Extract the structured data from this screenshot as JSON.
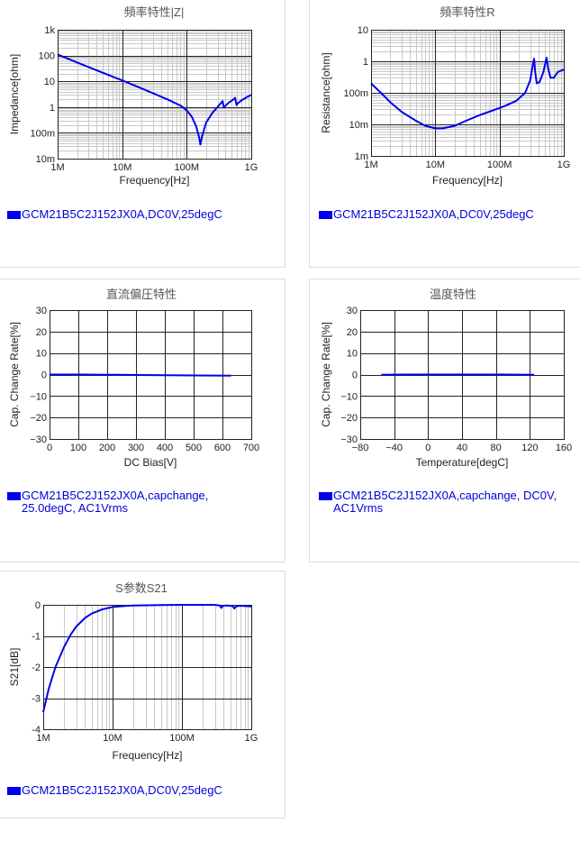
{
  "chart_data": [
    {
      "id": "z",
      "type": "line",
      "title": "頻率特性|Z|",
      "xlabel": "Frequency[Hz]",
      "ylabel": "Impedance[ohm]",
      "x_scale": "log",
      "y_scale": "log",
      "xlim": [
        1000000,
        1000000000
      ],
      "ylim": [
        0.01,
        1000
      ],
      "x_ticks": [
        {
          "v": 1000000,
          "label": "1M"
        },
        {
          "v": 10000000,
          "label": "10M"
        },
        {
          "v": 100000000,
          "label": "100M"
        },
        {
          "v": 1000000000,
          "label": "1G"
        }
      ],
      "y_ticks": [
        {
          "v": 1000,
          "label": "1k"
        },
        {
          "v": 100,
          "label": "100"
        },
        {
          "v": 10,
          "label": "10"
        },
        {
          "v": 1,
          "label": "1"
        },
        {
          "v": 0.1,
          "label": "100m"
        },
        {
          "v": 0.01,
          "label": "10m"
        }
      ],
      "grid": true,
      "legend": "bottom-left",
      "series": [
        {
          "name": "GCM21B5C2J152JX0A,DC0V,25degC",
          "color": "#0000ee",
          "points": [
            [
              1000000,
              110
            ],
            [
              2000000,
              54
            ],
            [
              5000000,
              21.5
            ],
            [
              10000000,
              10.8
            ],
            [
              20000000,
              5.3
            ],
            [
              50000000,
              2.0
            ],
            [
              80000000,
              1.15
            ],
            [
              100000000,
              0.75
            ],
            [
              120000000,
              0.42
            ],
            [
              140000000,
              0.18
            ],
            [
              155000000,
              0.07
            ],
            [
              163000000,
              0.035
            ],
            [
              172000000,
              0.07
            ],
            [
              200000000,
              0.25
            ],
            [
              250000000,
              0.6
            ],
            [
              300000000,
              1.0
            ],
            [
              340000000,
              1.45
            ],
            [
              360000000,
              1.7
            ],
            [
              375000000,
              0.95
            ],
            [
              400000000,
              1.15
            ],
            [
              450000000,
              1.5
            ],
            [
              520000000,
              1.9
            ],
            [
              560000000,
              2.3
            ],
            [
              590000000,
              1.2
            ],
            [
              620000000,
              1.4
            ],
            [
              700000000,
              1.8
            ],
            [
              850000000,
              2.4
            ],
            [
              1000000000,
              3.0
            ]
          ]
        }
      ]
    },
    {
      "id": "r",
      "type": "line",
      "title": "頻率特性R",
      "xlabel": "Frequency[Hz]",
      "ylabel": "Resistance[ohm]",
      "x_scale": "log",
      "y_scale": "log",
      "xlim": [
        1000000,
        1000000000
      ],
      "ylim": [
        0.001,
        10
      ],
      "x_ticks": [
        {
          "v": 1000000,
          "label": "1M"
        },
        {
          "v": 10000000,
          "label": "10M"
        },
        {
          "v": 100000000,
          "label": "100M"
        },
        {
          "v": 1000000000,
          "label": "1G"
        }
      ],
      "y_ticks": [
        {
          "v": 10,
          "label": "10"
        },
        {
          "v": 1,
          "label": "1"
        },
        {
          "v": 0.1,
          "label": "100m"
        },
        {
          "v": 0.01,
          "label": "10m"
        },
        {
          "v": 0.001,
          "label": "1m"
        }
      ],
      "grid": true,
      "legend": "bottom-left",
      "series": [
        {
          "name": "GCM21B5C2J152JX0A,DC0V,25degC",
          "color": "#0000ee",
          "points": [
            [
              1000000,
              0.2
            ],
            [
              1500000,
              0.09
            ],
            [
              2000000,
              0.05
            ],
            [
              3000000,
              0.025
            ],
            [
              5000000,
              0.013
            ],
            [
              7000000,
              0.009
            ],
            [
              10000000,
              0.0075
            ],
            [
              13000000,
              0.0075
            ],
            [
              20000000,
              0.009
            ],
            [
              30000000,
              0.013
            ],
            [
              50000000,
              0.02
            ],
            [
              80000000,
              0.028
            ],
            [
              120000000,
              0.038
            ],
            [
              180000000,
              0.055
            ],
            [
              250000000,
              0.1
            ],
            [
              300000000,
              0.25
            ],
            [
              330000000,
              0.8
            ],
            [
              345000000,
              1.2
            ],
            [
              360000000,
              0.45
            ],
            [
              380000000,
              0.2
            ],
            [
              420000000,
              0.22
            ],
            [
              480000000,
              0.45
            ],
            [
              540000000,
              1.3
            ],
            [
              570000000,
              0.6
            ],
            [
              620000000,
              0.3
            ],
            [
              700000000,
              0.3
            ],
            [
              800000000,
              0.45
            ],
            [
              900000000,
              0.5
            ],
            [
              1000000000,
              0.55
            ]
          ]
        }
      ]
    },
    {
      "id": "dcbias",
      "type": "line",
      "title": "直流偏圧特性",
      "xlabel": "DC Bias[V]",
      "ylabel": "Cap. Change Rate[%]",
      "x_scale": "linear",
      "y_scale": "linear",
      "xlim": [
        0,
        700
      ],
      "ylim": [
        -30,
        30
      ],
      "x_ticks": [
        {
          "v": 0,
          "label": "0"
        },
        {
          "v": 100,
          "label": "100"
        },
        {
          "v": 200,
          "label": "200"
        },
        {
          "v": 300,
          "label": "300"
        },
        {
          "v": 400,
          "label": "400"
        },
        {
          "v": 500,
          "label": "500"
        },
        {
          "v": 600,
          "label": "600"
        },
        {
          "v": 700,
          "label": "700"
        }
      ],
      "y_ticks": [
        {
          "v": 30,
          "label": "30"
        },
        {
          "v": 20,
          "label": "20"
        },
        {
          "v": 10,
          "label": "10"
        },
        {
          "v": 0,
          "label": "0"
        },
        {
          "v": -10,
          "label": "−10"
        },
        {
          "v": -20,
          "label": "−20"
        },
        {
          "v": -30,
          "label": "−30"
        }
      ],
      "grid": true,
      "legend": "bottom-left",
      "series": [
        {
          "name": "GCM21B5C2J152JX0A,capchange,\n25.0degC, AC1Vrms",
          "color": "#0000ee",
          "points": [
            [
              0,
              0
            ],
            [
              100,
              0
            ],
            [
              200,
              -0.1
            ],
            [
              300,
              -0.2
            ],
            [
              400,
              -0.3
            ],
            [
              500,
              -0.4
            ],
            [
              630,
              -0.5
            ]
          ]
        }
      ]
    },
    {
      "id": "temp",
      "type": "line",
      "title": "温度特性",
      "xlabel": "Temperature[degC]",
      "ylabel": "Cap. Change Rate[%]",
      "x_scale": "linear",
      "y_scale": "linear",
      "xlim": [
        -80,
        160
      ],
      "ylim": [
        -30,
        30
      ],
      "x_ticks": [
        {
          "v": -80,
          "label": "−80"
        },
        {
          "v": -40,
          "label": "−40"
        },
        {
          "v": 0,
          "label": "0"
        },
        {
          "v": 40,
          "label": "40"
        },
        {
          "v": 80,
          "label": "80"
        },
        {
          "v": 120,
          "label": "120"
        },
        {
          "v": 160,
          "label": "160"
        }
      ],
      "y_ticks": [
        {
          "v": 30,
          "label": "30"
        },
        {
          "v": 20,
          "label": "20"
        },
        {
          "v": 10,
          "label": "10"
        },
        {
          "v": 0,
          "label": "0"
        },
        {
          "v": -10,
          "label": "−10"
        },
        {
          "v": -20,
          "label": "−20"
        },
        {
          "v": -30,
          "label": "−30"
        }
      ],
      "grid": true,
      "legend": "bottom-left",
      "series": [
        {
          "name": "GCM21B5C2J152JX0A,capchange, DC0V,\nAC1Vrms",
          "color": "#0000ee",
          "points": [
            [
              -55,
              -0.1
            ],
            [
              -25,
              0
            ],
            [
              0,
              0
            ],
            [
              25,
              0
            ],
            [
              50,
              0
            ],
            [
              85,
              0
            ],
            [
              125,
              -0.1
            ]
          ]
        }
      ]
    },
    {
      "id": "s21",
      "type": "line",
      "title": "S参数S21",
      "xlabel": "Frequency[Hz]",
      "ylabel": "S21[dB]",
      "x_scale": "log",
      "y_scale": "linear",
      "xlim": [
        1000000,
        1000000000
      ],
      "ylim": [
        -4,
        0
      ],
      "x_ticks": [
        {
          "v": 1000000,
          "label": "1M"
        },
        {
          "v": 10000000,
          "label": "10M"
        },
        {
          "v": 100000000,
          "label": "100M"
        },
        {
          "v": 1000000000,
          "label": "1G"
        }
      ],
      "y_ticks": [
        {
          "v": 0,
          "label": "0"
        },
        {
          "v": -1,
          "label": "-1"
        },
        {
          "v": -2,
          "label": "-2"
        },
        {
          "v": -3,
          "label": "-3"
        },
        {
          "v": -4,
          "label": "-4"
        }
      ],
      "grid": true,
      "legend": "bottom-left",
      "series": [
        {
          "name": "GCM21B5C2J152JX0A,DC0V,25degC",
          "color": "#0000ee",
          "points": [
            [
              1000000,
              -3.45
            ],
            [
              1200000,
              -2.7
            ],
            [
              1500000,
              -2.0
            ],
            [
              2000000,
              -1.35
            ],
            [
              2500000,
              -0.95
            ],
            [
              3000000,
              -0.7
            ],
            [
              4000000,
              -0.42
            ],
            [
              5000000,
              -0.28
            ],
            [
              7000000,
              -0.15
            ],
            [
              10000000,
              -0.07
            ],
            [
              15000000,
              -0.035
            ],
            [
              20000000,
              -0.02
            ],
            [
              50000000,
              -0.005
            ],
            [
              100000000,
              0
            ],
            [
              300000000,
              0
            ],
            [
              350000000,
              -0.02
            ],
            [
              370000000,
              -0.1
            ],
            [
              390000000,
              -0.03
            ],
            [
              450000000,
              -0.02
            ],
            [
              540000000,
              -0.04
            ],
            [
              570000000,
              -0.12
            ],
            [
              600000000,
              -0.05
            ],
            [
              700000000,
              -0.03
            ],
            [
              1000000000,
              -0.05
            ]
          ]
        }
      ]
    }
  ]
}
